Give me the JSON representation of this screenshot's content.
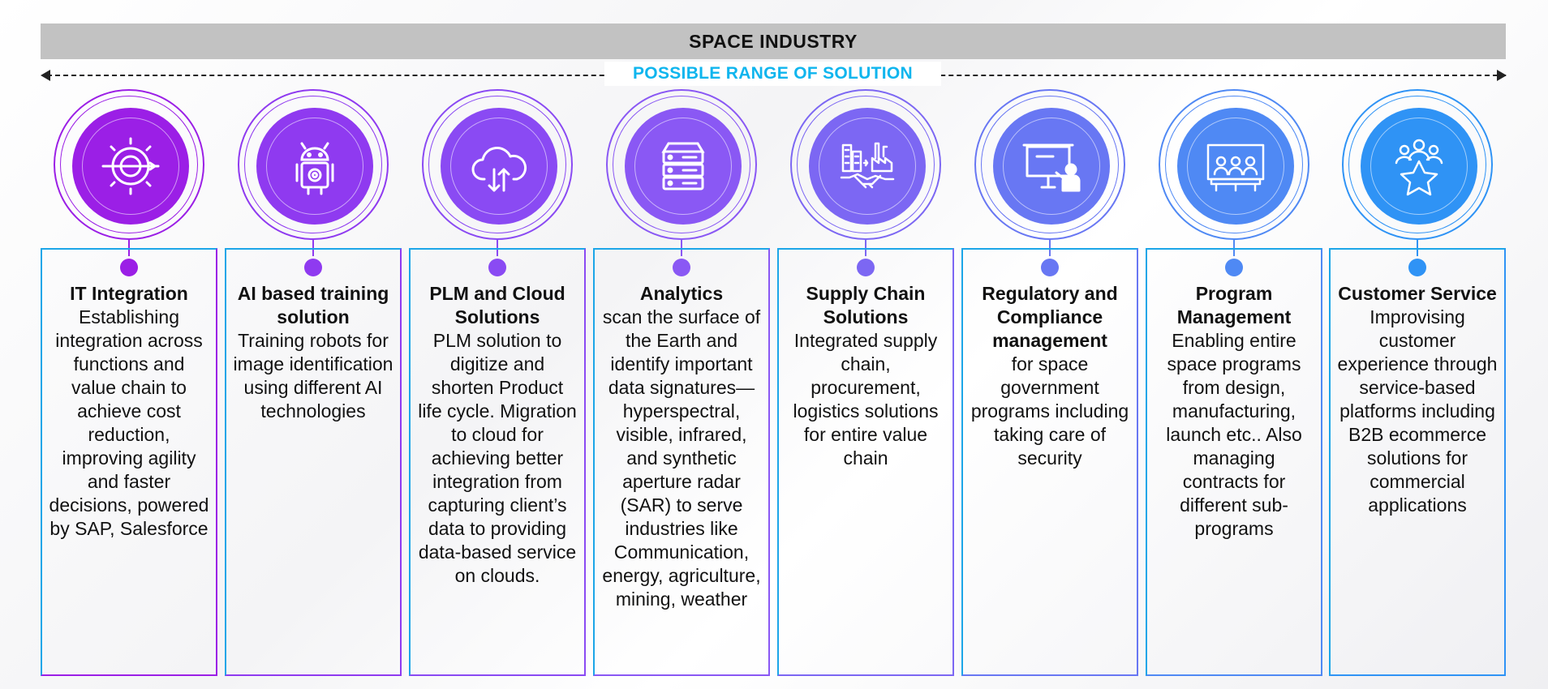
{
  "header": {
    "title": "SPACE INDUSTRY",
    "range_label": "POSSIBLE RANGE OF SOLUTION"
  },
  "colors": {
    "range_text": "#0fb5ee",
    "banner": "#c2c2c2",
    "column_gradient": [
      "#9b1fe6",
      "#8f3af0",
      "#8a4af3",
      "#8a58f4",
      "#7c67f3",
      "#6877f3",
      "#4f89f4",
      "#2f93f5"
    ]
  },
  "columns": [
    {
      "icon": "gear-pencil-icon",
      "title": "IT Integration",
      "description": "Establishing integration across functions and value chain to achieve cost reduction, improving agility and faster decisions, powered by SAP, Salesforce"
    },
    {
      "icon": "android-robot-gear-icon",
      "title": "AI based training solution",
      "description": "Training robots for image identification using different AI technologies"
    },
    {
      "icon": "cloud-upload-download-icon",
      "title": "PLM and Cloud Solutions",
      "description": "PLM solution to digitize and shorten Product life cycle. Migration to cloud for achieving better integration from capturing client’s data to providing data-based service on clouds."
    },
    {
      "icon": "server-rack-icon",
      "title": "Analytics",
      "description": "scan the surface of the Earth and identify important data signatures—hyperspectral, visible, infrared, and synthetic aperture radar (SAR) to serve industries like Communication, energy, agriculture, mining, weather"
    },
    {
      "icon": "factory-handshake-icon",
      "title": "Supply Chain Solutions",
      "description": "Integrated supply chain, procurement, logistics solutions for entire value chain"
    },
    {
      "icon": "presentation-board-icon",
      "title": "Regulatory and Compliance management",
      "description": "for space government programs including taking care of security"
    },
    {
      "icon": "meeting-team-icon",
      "title": "Program Management",
      "description": "Enabling entire space programs from design, manufacturing, launch etc.. Also managing contracts for different sub-programs"
    },
    {
      "icon": "customer-star-icon",
      "title": "Customer Service",
      "description": "Improvising customer experience through service-based platforms including B2B ecommerce solutions for commercial applications"
    }
  ]
}
